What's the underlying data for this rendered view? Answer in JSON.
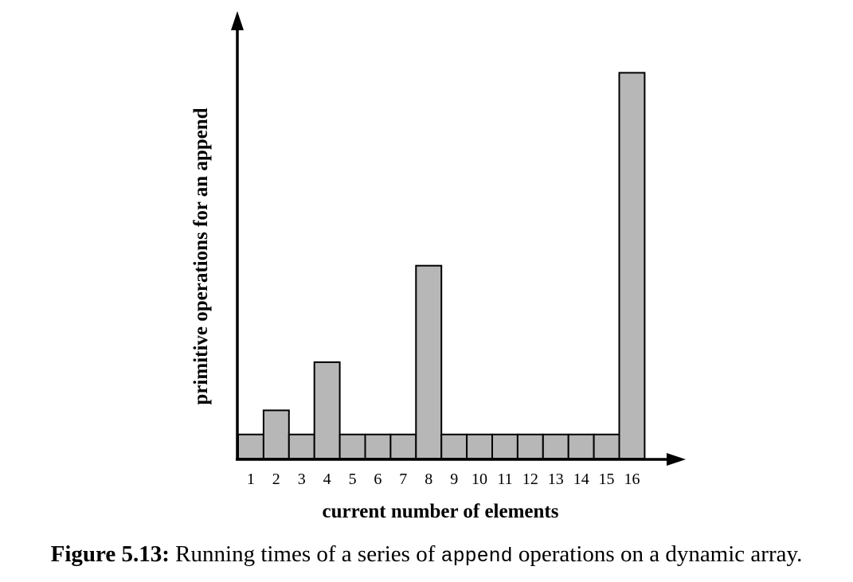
{
  "chart_data": {
    "type": "bar",
    "categories": [
      "1",
      "2",
      "3",
      "4",
      "5",
      "6",
      "7",
      "8",
      "9",
      "10",
      "11",
      "12",
      "13",
      "14",
      "15",
      "16"
    ],
    "values": [
      1,
      2,
      1,
      4,
      1,
      1,
      1,
      8,
      1,
      1,
      1,
      1,
      1,
      1,
      1,
      16
    ],
    "xlabel": "current number of elements",
    "ylabel": "primitive operations for an append",
    "ylim": [
      0,
      17.5
    ],
    "grid": false,
    "colors": {
      "bar": "#b7b7b7",
      "axis": "#000000"
    }
  },
  "caption": {
    "figure_label": "Figure 5.13:",
    "text_before": "Running times of a series of",
    "code_word": "append",
    "text_after": "operations on a dynamic array."
  }
}
